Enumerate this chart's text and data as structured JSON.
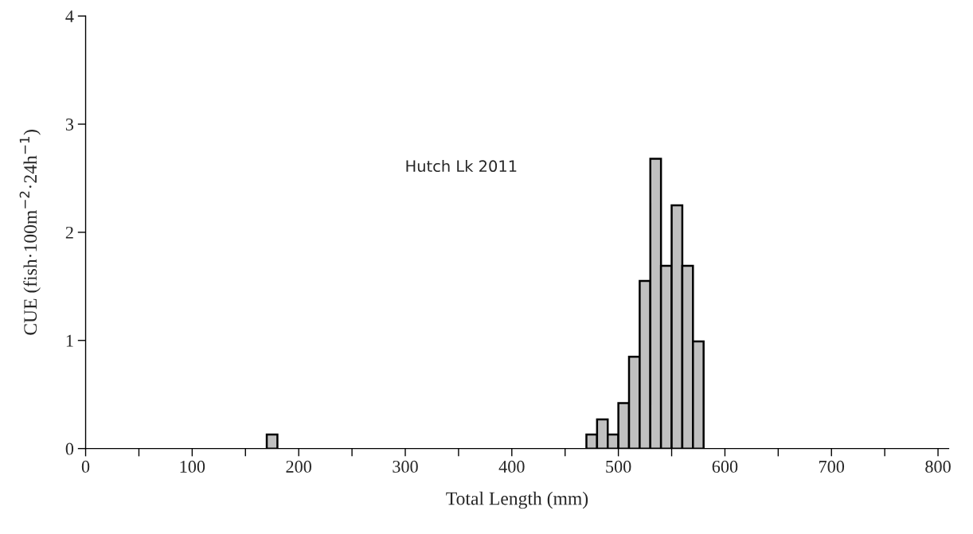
{
  "chart_data": {
    "type": "histogram",
    "xlabel": "Total Length (mm)",
    "ylabel": "CUE (fish·100m$^{−2}$·24h$^{−1}$)",
    "annotations": [
      "Hutch Lk 2011"
    ],
    "bins": [
      170,
      180,
      190,
      200,
      210,
      220,
      230,
      240,
      250,
      260,
      270,
      280,
      290,
      300,
      310,
      320,
      330,
      340,
      350,
      360,
      370,
      380,
      390,
      400,
      410,
      420,
      430,
      440,
      450,
      460,
      470,
      480,
      490,
      500,
      510,
      520,
      530,
      540,
      550,
      560,
      570,
      580
    ],
    "values": [
      0.13,
      0,
      0,
      0,
      0,
      0,
      0,
      0,
      0,
      0,
      0,
      0,
      0,
      0,
      0,
      0,
      0,
      0,
      0,
      0,
      0,
      0,
      0,
      0,
      0,
      0,
      0,
      0,
      0,
      0,
      0.13,
      0.27,
      0.13,
      0.42,
      0.85,
      1.55,
      2.68,
      1.69,
      2.25,
      1.69,
      0.99
    ],
    "color": "#c0c0c0",
    "xlim": [
      0,
      810
    ],
    "ylim": [
      0,
      4
    ],
    "xticks": [
      0,
      {
        "value": 50,
        "label": null
      },
      100,
      {
        "value": 150,
        "label": null
      },
      200,
      {
        "value": 250,
        "label": null
      },
      300,
      {
        "value": 350,
        "label": null
      },
      400,
      {
        "value": 450,
        "label": null
      },
      500,
      {
        "value": 550,
        "label": null
      },
      600,
      {
        "value": 650,
        "label": null
      },
      700,
      {
        "value": 750,
        "label": null
      },
      800
    ],
    "yticks": [
      0,
      1,
      2,
      3,
      4
    ],
    "grid": false,
    "legend": false
  }
}
